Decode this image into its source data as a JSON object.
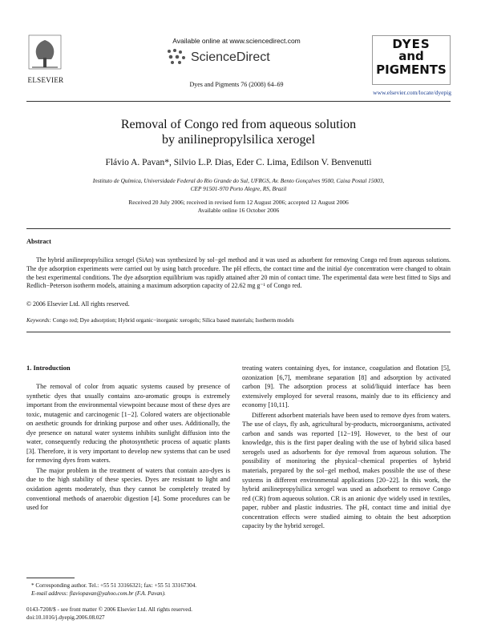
{
  "header": {
    "publisher": "ELSEVIER",
    "available": "Available online at www.sciencedirect.com",
    "brand": "ScienceDirect",
    "citation": "Dyes and Pigments 76 (2008) 64–69",
    "journal_logo": [
      "DYES",
      "and",
      "PIGMENTS"
    ],
    "url": "www.elsevier.com/locate/dyepig"
  },
  "title": [
    "Removal of Congo red from aqueous solution",
    "by anilinepropylsilica xerogel"
  ],
  "authors": "Flávio A. Pavan*, Silvio L.P. Dias, Eder C. Lima, Edilson V. Benvenutti",
  "affiliation": [
    "Instituto de Química, Universidade Federal do Rio Grande do Sul, UFRGS, Av. Bento Gonçalves 9500, Caixa Postal 15003,",
    "CEP 91501-970 Porto Alegre, RS, Brazil"
  ],
  "dates": [
    "Received 20 July 2006; received in revised form 12 August 2006; accepted 12 August 2006",
    "Available online 16 October 2006"
  ],
  "abstract": {
    "heading": "Abstract",
    "text": "The hybrid anilinepropylsilica xerogel (SiAn) was synthesized by sol−gel method and it was used as adsorbent for removing Congo red from aqueous solutions. The dye adsorption experiments were carried out by using batch procedure. The pH effects, the contact time and the initial dye concentration were changed to obtain the best experimental conditions. The dye adsorption equilibrium was rapidly attained after 20 min of contact time. The experimental data were best fitted to Sips and Redlich−Peterson isotherm models, attaining a maximum adsorption capacity of 22.62 mg g⁻¹ of Congo red.",
    "copyright": "© 2006 Elsevier Ltd. All rights reserved."
  },
  "keywords": {
    "label": "Keywords:",
    "text": "Congo red; Dye adsorption; Hybrid organic−inorganic xerogels; Silica based materials; Isotherm models"
  },
  "section": {
    "heading": "1. Introduction",
    "left": [
      "The removal of color from aquatic systems caused by presence of synthetic dyes that usually contains azo-aromatic groups is extremely important from the environmental viewpoint because most of these dyes are toxic, mutagenic and carcinogenic [1−2]. Colored waters are objectionable on aesthetic grounds for drinking purpose and other uses. Additionally, the dye presence on natural water systems inhibits sunlight diffusion into the water, consequently reducing the photosynthetic process of aquatic plants [3]. Therefore, it is very important to develop new systems that can be used for removing dyes from waters.",
      "The major problem in the treatment of waters that contain azo-dyes is due to the high stability of these species. Dyes are resistant to light and oxidation agents moderately, thus they cannot be completely treated by conventional methods of anaerobic digestion [4]. Some procedures can be used for"
    ],
    "right": [
      "treating waters containing dyes, for instance, coagulation and flotation [5], ozonization [6,7], membrane separation [8] and adsorption by activated carbon [9]. The adsorption process at solid/liquid interface has been extensively employed for several reasons, mainly due to its efficiency and economy [10,11].",
      "Different adsorbent materials have been used to remove dyes from waters. The use of clays, fly ash, agricultural by-products, microorganisms, activated carbon and sands was reported [12−19]. However, to the best of our knowledge, this is the first paper dealing with the use of hybrid silica based xerogels used as adsorbents for dye removal from aqueous solution. The possibility of monitoring the physical−chemical properties of hybrid materials, prepared by the sol−gel method, makes possible the use of these systems in different environmental applications [20−22]. In this work, the hybrid anilinepropylsilica xerogel was used as adsorbent to remove Congo red (CR) from aqueous solution. CR is an anionic dye widely used in textiles, paper, rubber and plastic industries. The pH, contact time and initial dye concentration effects were studied aiming to obtain the best adsorption capacity by the hybrid xerogel."
    ]
  },
  "footnote": [
    "* Corresponding author. Tel.: +55 51 33166321; fax: +55 51 33167304.",
    "E-mail address: flaviopavan@yahoo.com.br (F.A. Pavan)."
  ],
  "footer": [
    "0143-7208/$ - see front matter © 2006 Elsevier Ltd. All rights reserved.",
    "doi:10.1016/j.dyepig.2006.08.027"
  ]
}
